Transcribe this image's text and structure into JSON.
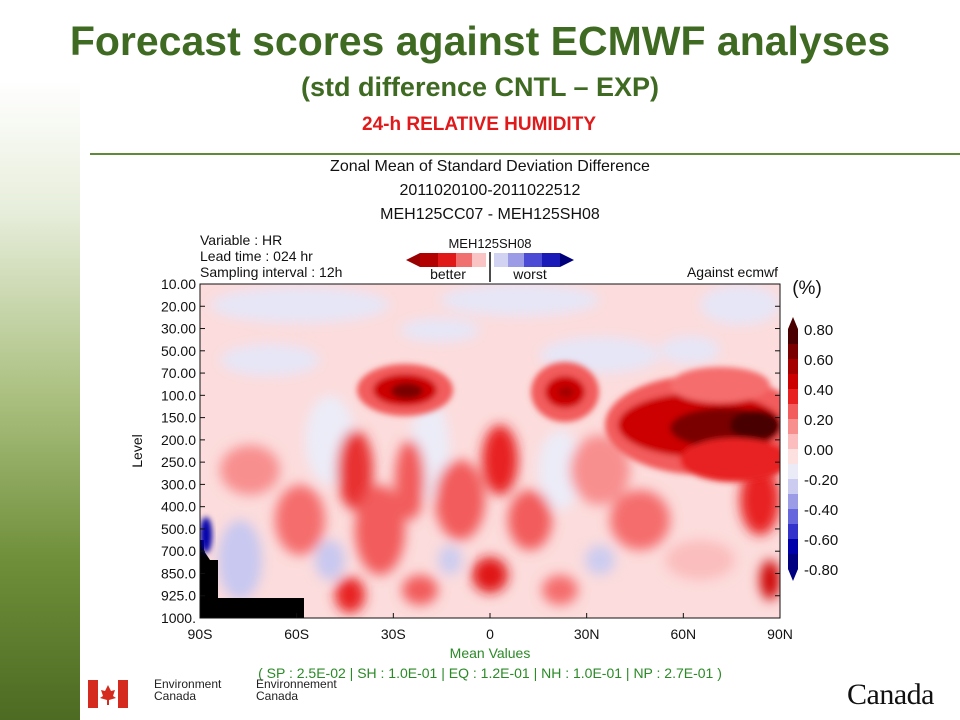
{
  "slide": {
    "title": "Forecast scores against ECMWF analyses",
    "subtitle": "(std difference CNTL – EXP)",
    "plot_header": "24-h RELATIVE HUMIDITY"
  },
  "plot_text": {
    "title_lines": [
      "Zonal Mean of Standard Deviation Difference",
      "2011020100-2011022512",
      "MEH125CC07 - MEH125SH08"
    ],
    "info_lines": [
      "Variable : HR",
      "Lead time : 024 hr",
      "Sampling interval : 12h"
    ],
    "scale_label": "MEH125SH08",
    "better_label": "better",
    "worst_label": "worst",
    "against_label": "Against ecmwf",
    "units_label": "(%)",
    "mean_values_label": "Mean Values",
    "mean_values_text": "( SP : 2.5E-02 | SH : 1.0E-01 | EQ : 1.2E-01 | NH : 1.0E-01 | NP : 2.7E-01 )"
  },
  "footer": {
    "dept_en": "Environment",
    "dept_en2": "Canada",
    "dept_fr": "Environnement",
    "dept_fr2": "Canada",
    "wordmark": "Canada"
  },
  "colors": {
    "title_green": "#3f6a22",
    "header_red": "#e0191b",
    "flag_red": "#d52b1e"
  },
  "chart_data": {
    "type": "heatmap",
    "title": "Zonal Mean of Standard Deviation Difference",
    "ylabel": "Level",
    "x_ticks": [
      "90S",
      "60S",
      "30S",
      "0",
      "30N",
      "60N",
      "90N"
    ],
    "y_ticks": [
      "10.00",
      "20.00",
      "30.00",
      "50.00",
      "70.00",
      "100.0",
      "150.0",
      "200.0",
      "250.0",
      "300.0",
      "400.0",
      "500.0",
      "700.0",
      "850.0",
      "925.0",
      "1000."
    ],
    "colorbar": {
      "unit": "(%)",
      "levels": [
        "0.80",
        "0.60",
        "0.40",
        "0.20",
        "0.00",
        "-0.20",
        "-0.40",
        "-0.60",
        "-0.80"
      ],
      "colors": [
        "#4a0000",
        "#7a0000",
        "#a50000",
        "#cc0000",
        "#e82020",
        "#f25c5c",
        "#f88f8f",
        "#fbbdbd",
        "#fde0e0",
        "#ebeaf7",
        "#ccccf0",
        "#9b9be6",
        "#6666dd",
        "#3333cc",
        "#0000aa",
        "#000080"
      ]
    },
    "features": [
      {
        "lat": -21,
        "level": "100.0",
        "value": 0.8
      },
      {
        "lat": 16,
        "level": "100.0",
        "value": 0.6
      },
      {
        "lat": 75,
        "level": "150.0",
        "value": 0.8
      },
      {
        "lat": 55,
        "level": "150.0",
        "value": 0.5
      },
      {
        "lat": 85,
        "level": "250.0",
        "value": 0.6
      },
      {
        "lat": -30,
        "level": "300.0",
        "value": 0.4
      },
      {
        "lat": 12,
        "level": "400.0",
        "value": 0.3
      },
      {
        "lat": -85,
        "level": "700.0",
        "value": -0.6
      },
      {
        "lat": 0,
        "level": "850.0",
        "value": 0.4
      }
    ]
  }
}
